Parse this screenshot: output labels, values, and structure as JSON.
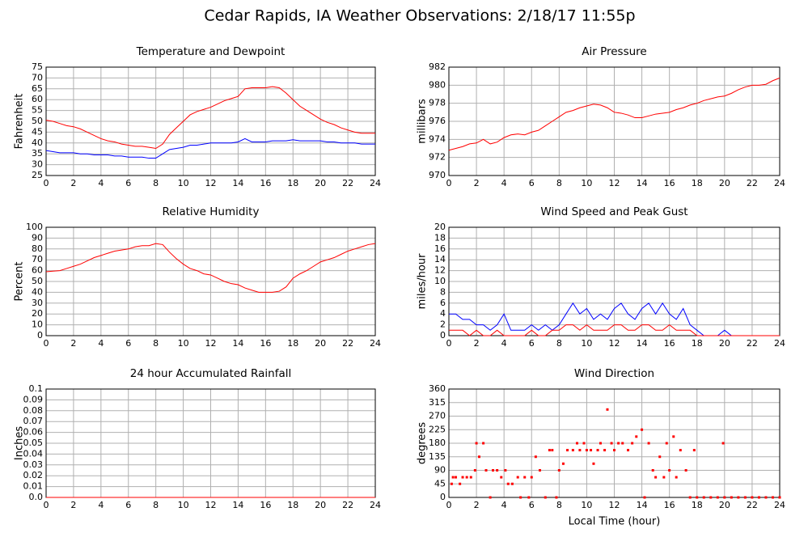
{
  "title": "Cedar Rapids, IA Weather Observations: 2/18/17 11:55p",
  "chart_data": [
    {
      "type": "line",
      "title": "Temperature and Dewpoint",
      "ylabel": "Fahrenheit",
      "grid": true,
      "xlim": [
        0,
        24
      ],
      "xticks": [
        0,
        2,
        4,
        6,
        8,
        10,
        12,
        14,
        16,
        18,
        20,
        22,
        24
      ],
      "ylim": [
        25,
        75
      ],
      "yticks": [
        25,
        30,
        35,
        40,
        45,
        50,
        55,
        60,
        65,
        70,
        75
      ],
      "x": [
        0,
        0.5,
        1,
        1.5,
        2,
        2.5,
        3,
        3.5,
        4,
        4.5,
        5,
        5.5,
        6,
        6.5,
        7,
        7.5,
        8,
        8.5,
        9,
        9.5,
        10,
        10.5,
        11,
        11.5,
        12,
        12.5,
        13,
        13.5,
        14,
        14.5,
        15,
        15.5,
        16,
        16.5,
        17,
        17.5,
        18,
        18.5,
        19,
        19.5,
        20,
        20.5,
        21,
        21.5,
        22,
        22.5,
        23,
        23.5,
        24
      ],
      "series": [
        {
          "color": "#ff0000",
          "values": [
            50.5,
            50,
            49,
            48,
            47.5,
            46.5,
            45,
            43.5,
            42,
            41,
            40.5,
            39.5,
            39,
            38.5,
            38.5,
            38,
            37.5,
            39.5,
            44,
            47,
            50,
            53,
            54.5,
            55.5,
            56.5,
            58,
            59.5,
            60.5,
            61.5,
            65,
            65.5,
            65.5,
            65.5,
            66,
            65.5,
            63,
            60,
            57,
            55,
            53,
            51,
            49.5,
            48.5,
            47,
            46,
            45,
            44.5,
            44.5,
            44.5
          ]
        },
        {
          "color": "#0000ff",
          "values": [
            36.5,
            36,
            35.5,
            35.5,
            35.5,
            35,
            35,
            34.5,
            34.5,
            34.5,
            34,
            34,
            33.5,
            33.5,
            33.5,
            33,
            33,
            35,
            37,
            37.5,
            38,
            39,
            39,
            39.5,
            40,
            40,
            40,
            40,
            40.5,
            42,
            40.5,
            40.5,
            40.5,
            41,
            41,
            41,
            41.5,
            41,
            41,
            41,
            41,
            40.5,
            40.5,
            40,
            40,
            40,
            39.5,
            39.5,
            39.5
          ]
        }
      ]
    },
    {
      "type": "line",
      "title": "Air Pressure",
      "ylabel": "millibars",
      "grid": true,
      "xlim": [
        0,
        24
      ],
      "xticks": [
        0,
        2,
        4,
        6,
        8,
        10,
        12,
        14,
        16,
        18,
        20,
        22,
        24
      ],
      "ylim": [
        970,
        982
      ],
      "yticks": [
        970,
        972,
        974,
        976,
        978,
        980,
        982
      ],
      "x": [
        0,
        0.5,
        1,
        1.5,
        2,
        2.5,
        3,
        3.5,
        4,
        4.5,
        5,
        5.5,
        6,
        6.5,
        7,
        7.5,
        8,
        8.5,
        9,
        9.5,
        10,
        10.5,
        11,
        11.5,
        12,
        12.5,
        13,
        13.5,
        14,
        14.5,
        15,
        15.5,
        16,
        16.5,
        17,
        17.5,
        18,
        18.5,
        19,
        19.5,
        20,
        20.5,
        21,
        21.5,
        22,
        22.5,
        23,
        23.5,
        24
      ],
      "series": [
        {
          "color": "#ff0000",
          "values": [
            972.8,
            973,
            973.2,
            973.5,
            973.6,
            974,
            973.5,
            973.7,
            974.2,
            974.5,
            974.6,
            974.5,
            974.8,
            975,
            975.5,
            976,
            976.5,
            977,
            977.2,
            977.5,
            977.7,
            977.9,
            977.8,
            977.5,
            977,
            976.9,
            976.7,
            976.4,
            976.4,
            976.6,
            976.8,
            976.9,
            977,
            977.3,
            977.5,
            977.8,
            978,
            978.3,
            978.5,
            978.7,
            978.8,
            979.1,
            979.5,
            979.8,
            980,
            980,
            980.1,
            980.5,
            980.8
          ]
        }
      ]
    },
    {
      "type": "line",
      "title": "Relative Humidity",
      "ylabel": "Percent",
      "grid": true,
      "xlim": [
        0,
        24
      ],
      "xticks": [
        0,
        2,
        4,
        6,
        8,
        10,
        12,
        14,
        16,
        18,
        20,
        22,
        24
      ],
      "ylim": [
        0,
        100
      ],
      "yticks": [
        0,
        10,
        20,
        30,
        40,
        50,
        60,
        70,
        80,
        90,
        100
      ],
      "x": [
        0,
        0.5,
        1,
        1.5,
        2,
        2.5,
        3,
        3.5,
        4,
        4.5,
        5,
        5.5,
        6,
        6.5,
        7,
        7.5,
        8,
        8.5,
        9,
        9.5,
        10,
        10.5,
        11,
        11.5,
        12,
        12.5,
        13,
        13.5,
        14,
        14.5,
        15,
        15.5,
        16,
        16.5,
        17,
        17.5,
        18,
        18.5,
        19,
        19.5,
        20,
        20.5,
        21,
        21.5,
        22,
        22.5,
        23,
        23.5,
        24
      ],
      "series": [
        {
          "color": "#ff0000",
          "values": [
            59,
            59.5,
            60,
            62,
            64,
            66,
            69,
            72,
            74,
            76,
            78,
            79,
            80,
            82,
            83,
            83,
            85,
            84,
            77,
            71,
            66,
            62,
            60,
            57,
            56,
            53,
            50,
            48,
            47,
            44,
            42,
            40,
            40,
            40,
            41,
            45,
            53,
            57,
            60,
            64,
            68,
            70,
            72,
            75,
            78,
            80,
            82,
            84,
            85
          ]
        }
      ]
    },
    {
      "type": "line",
      "title": "Wind Speed and Peak Gust",
      "ylabel": "miles/hour",
      "grid": true,
      "xlim": [
        0,
        24
      ],
      "xticks": [
        0,
        2,
        4,
        6,
        8,
        10,
        12,
        14,
        16,
        18,
        20,
        22,
        24
      ],
      "ylim": [
        0,
        20
      ],
      "yticks": [
        0,
        2,
        4,
        6,
        8,
        10,
        12,
        14,
        16,
        18,
        20
      ],
      "x": [
        0,
        0.5,
        1,
        1.5,
        2,
        2.5,
        3,
        3.5,
        4,
        4.5,
        5,
        5.5,
        6,
        6.5,
        7,
        7.5,
        8,
        8.5,
        9,
        9.5,
        10,
        10.5,
        11,
        11.5,
        12,
        12.5,
        13,
        13.5,
        14,
        14.5,
        15,
        15.5,
        16,
        16.5,
        17,
        17.5,
        18,
        18.5,
        19,
        19.5,
        20,
        20.5,
        21,
        21.5,
        22,
        22.5,
        23,
        23.5,
        24
      ],
      "series": [
        {
          "color": "#0000ff",
          "values": [
            4,
            4,
            3,
            3,
            2,
            2,
            1,
            2,
            4,
            1,
            1,
            1,
            2,
            1,
            2,
            1,
            2,
            4,
            6,
            4,
            5,
            3,
            4,
            3,
            5,
            6,
            4,
            3,
            5,
            6,
            4,
            6,
            4,
            3,
            5,
            2,
            1,
            0,
            0,
            0,
            1,
            0,
            0,
            0,
            0,
            0,
            0,
            0,
            0
          ]
        },
        {
          "color": "#ff0000",
          "values": [
            1,
            1,
            1,
            0,
            1,
            0,
            0,
            1,
            0,
            0,
            0,
            0,
            1,
            0,
            0,
            1,
            1,
            2,
            2,
            1,
            2,
            1,
            1,
            1,
            2,
            2,
            1,
            1,
            2,
            2,
            1,
            1,
            2,
            1,
            1,
            1,
            0,
            0,
            0,
            0,
            0,
            0,
            0,
            0,
            0,
            0,
            0,
            0,
            0
          ]
        }
      ]
    },
    {
      "type": "line",
      "title": "24 hour Accumulated Rainfall",
      "ylabel": "Inches",
      "grid": true,
      "xlim": [
        0,
        24
      ],
      "xticks": [
        0,
        2,
        4,
        6,
        8,
        10,
        12,
        14,
        16,
        18,
        20,
        22,
        24
      ],
      "ylim": [
        0,
        0.1
      ],
      "yticks": [
        {
          "value": 0,
          "label": "0.0"
        },
        0.01,
        0.02,
        0.03,
        0.04,
        0.05,
        0.06,
        0.07,
        0.08,
        0.09,
        0.1
      ],
      "x": [
        0,
        24
      ],
      "series": [
        {
          "color": "#ff0000",
          "values": [
            0,
            0
          ]
        }
      ]
    },
    {
      "type": "scatter",
      "title": "Wind Direction",
      "ylabel": "degrees",
      "xlabel": "Local Time (hour)",
      "grid": true,
      "xlim": [
        0,
        24
      ],
      "xticks": [
        0,
        2,
        4,
        6,
        8,
        10,
        12,
        14,
        16,
        18,
        20,
        22,
        24
      ],
      "ylim": [
        0,
        360
      ],
      "yticks": [
        0,
        45,
        90,
        135,
        180,
        225,
        270,
        315,
        360
      ],
      "color": "#ff0000",
      "x": [
        0.2,
        0.3,
        0.5,
        0.8,
        1,
        1.3,
        1.6,
        1.9,
        2,
        2.2,
        2.5,
        2.7,
        3,
        3.2,
        3.5,
        3.8,
        4.1,
        4.3,
        4.6,
        5,
        5.2,
        5.5,
        5.8,
        6,
        6.3,
        6.6,
        7,
        7.3,
        7.5,
        7.8,
        8,
        8.3,
        8.6,
        9,
        9.3,
        9.5,
        9.8,
        10,
        10.3,
        10.5,
        10.8,
        11,
        11.3,
        11.5,
        11.8,
        12,
        12.3,
        12.6,
        13,
        13.3,
        13.6,
        14,
        14.2,
        14.5,
        14.8,
        15,
        15.3,
        15.6,
        15.8,
        16,
        16.3,
        16.5,
        16.8,
        17.2,
        17.5,
        17.8,
        18,
        18.5,
        19,
        19.5,
        19.9,
        20,
        20.5,
        21,
        21.5,
        22,
        22.5,
        23,
        23.5,
        24
      ],
      "values": [
        45,
        67,
        67,
        45,
        67,
        67,
        67,
        90,
        180,
        135,
        180,
        90,
        0,
        90,
        90,
        67,
        90,
        45,
        45,
        67,
        0,
        67,
        0,
        67,
        135,
        90,
        0,
        157,
        157,
        0,
        90,
        112,
        157,
        157,
        180,
        157,
        180,
        157,
        157,
        112,
        157,
        180,
        157,
        292,
        180,
        157,
        180,
        180,
        157,
        180,
        202,
        225,
        0,
        180,
        90,
        67,
        135,
        67,
        180,
        90,
        202,
        67,
        157,
        90,
        0,
        157,
        0,
        0,
        0,
        0,
        180,
        0,
        0,
        0,
        0,
        0,
        0,
        0,
        0,
        0
      ]
    }
  ]
}
